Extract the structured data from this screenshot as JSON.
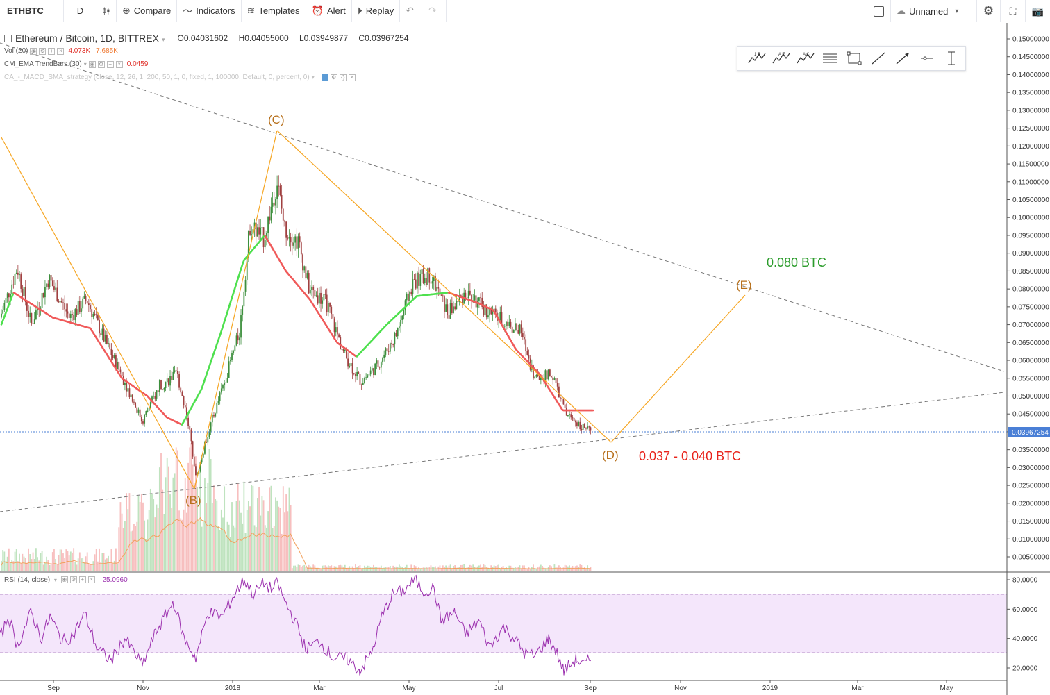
{
  "toolbar": {
    "symbol": "ETHBTC",
    "interval": "D",
    "compare": "Compare",
    "indicators": "Indicators",
    "templates": "Templates",
    "alert": "Alert",
    "replay": "Replay",
    "layout_name": "Unnamed"
  },
  "legend": {
    "title": "Ethereum / Bitcoin, 1D, BITTREX",
    "open": "O0.04031602",
    "high": "H0.04055000",
    "low": "L0.03949877",
    "close": "C0.03967254",
    "vol_label": "Vol (20)",
    "vol_value_1": "4.073K",
    "vol_value_2": "7.685K",
    "ema_label": "CM_EMA TrendBars (30)",
    "ema_value": "0.0459",
    "strategy_label": "CA_-_MACD_SMA_strategy (close, 12, 26, 1, 200, 50, 1, 0, fixed, 1, 100000, Default, 0, percent, 0)"
  },
  "rsi": {
    "label": "RSI (14, close)",
    "value": "25.0960"
  },
  "annotations": {
    "b": "(B)",
    "c": "(C)",
    "d": "(D)",
    "e": "(E)",
    "target_high": "0.080 BTC",
    "target_low": "0.037 - 0.040 BTC"
  },
  "price_axis": {
    "ticks": [
      "0.15000000",
      "0.14500000",
      "0.14000000",
      "0.13500000",
      "0.13000000",
      "0.12500000",
      "0.12000000",
      "0.11500000",
      "0.11000000",
      "0.10500000",
      "0.10000000",
      "0.09500000",
      "0.09000000",
      "0.08500000",
      "0.08000000",
      "0.07500000",
      "0.07000000",
      "0.06500000",
      "0.06000000",
      "0.05500000",
      "0.05000000",
      "0.04500000",
      "0.04000000",
      "0.03500000",
      "0.03000000",
      "0.02500000",
      "0.02000000",
      "0.01500000",
      "0.01000000",
      "0.00500000"
    ],
    "last_price": "0.03967254"
  },
  "rsi_axis": {
    "ticks": [
      "80.0000",
      "60.0000",
      "40.0000",
      "20.0000"
    ]
  },
  "time_axis": {
    "ticks": [
      "Sep",
      "Nov",
      "2018",
      "Mar",
      "May",
      "Jul",
      "Sep",
      "Nov",
      "2019",
      "Mar",
      "May"
    ]
  },
  "colors": {
    "ema_up": "#4ee04e",
    "ema_down": "#f05a5a",
    "candle_up": "#3d8f3d",
    "candle_down": "#a04040",
    "wave": "#f6a623",
    "rsi_line": "#9b2fae",
    "rsi_band": "#f1e1fa",
    "last_price": "#4a7fd6"
  },
  "chart_data": {
    "type": "candlestick",
    "symbol": "ETHBTC",
    "interval": "1D",
    "exchange": "BITTREX",
    "price_range": [
      0.0,
      0.15
    ],
    "rsi_range": [
      15,
      85
    ],
    "rsi_band": [
      30,
      70
    ],
    "last_price": 0.03967254,
    "ema_path": [
      [
        "2017-08-16",
        0.069
      ],
      [
        "2017-08-25",
        0.079
      ],
      [
        "2017-09-20",
        0.072
      ],
      [
        "2017-10-15",
        0.069
      ],
      [
        "2017-11-05",
        0.055
      ],
      [
        "2017-11-22",
        0.05
      ],
      [
        "2017-12-05",
        0.044
      ],
      [
        "2017-12-15",
        0.042
      ],
      [
        "2017-12-28",
        0.052
      ],
      [
        "2018-01-10",
        0.068
      ],
      [
        "2018-01-25",
        0.088
      ],
      [
        "2018-02-08",
        0.095
      ],
      [
        "2018-02-22",
        0.085
      ],
      [
        "2018-03-10",
        0.077
      ],
      [
        "2018-03-28",
        0.065
      ],
      [
        "2018-04-10",
        0.061
      ],
      [
        "2018-04-30",
        0.07
      ],
      [
        "2018-05-20",
        0.078
      ],
      [
        "2018-06-10",
        0.079
      ],
      [
        "2018-06-30",
        0.076
      ],
      [
        "2018-07-10",
        0.074
      ],
      [
        "2018-07-25",
        0.063
      ],
      [
        "2018-08-10",
        0.056
      ],
      [
        "2018-08-25",
        0.046
      ]
    ],
    "wave_points": [
      {
        "label": "(B)",
        "date": "2017-12-07",
        "price": 0.0245
      },
      {
        "label": "(C)",
        "date": "2018-01-28",
        "price": 0.1245
      },
      {
        "label": "(D)",
        "date": "2018-09-08",
        "price": 0.0365
      },
      {
        "label": "(E)",
        "date": "2018-12-21",
        "price": 0.078
      }
    ],
    "trendlines": [
      {
        "from": [
          "2017-08-16",
          0.1475
        ],
        "to": [
          "2019-06-01",
          0.0565
        ]
      },
      {
        "from": [
          "2017-08-16",
          0.0175
        ],
        "to": [
          "2019-06-01",
          0.051
        ]
      }
    ]
  }
}
